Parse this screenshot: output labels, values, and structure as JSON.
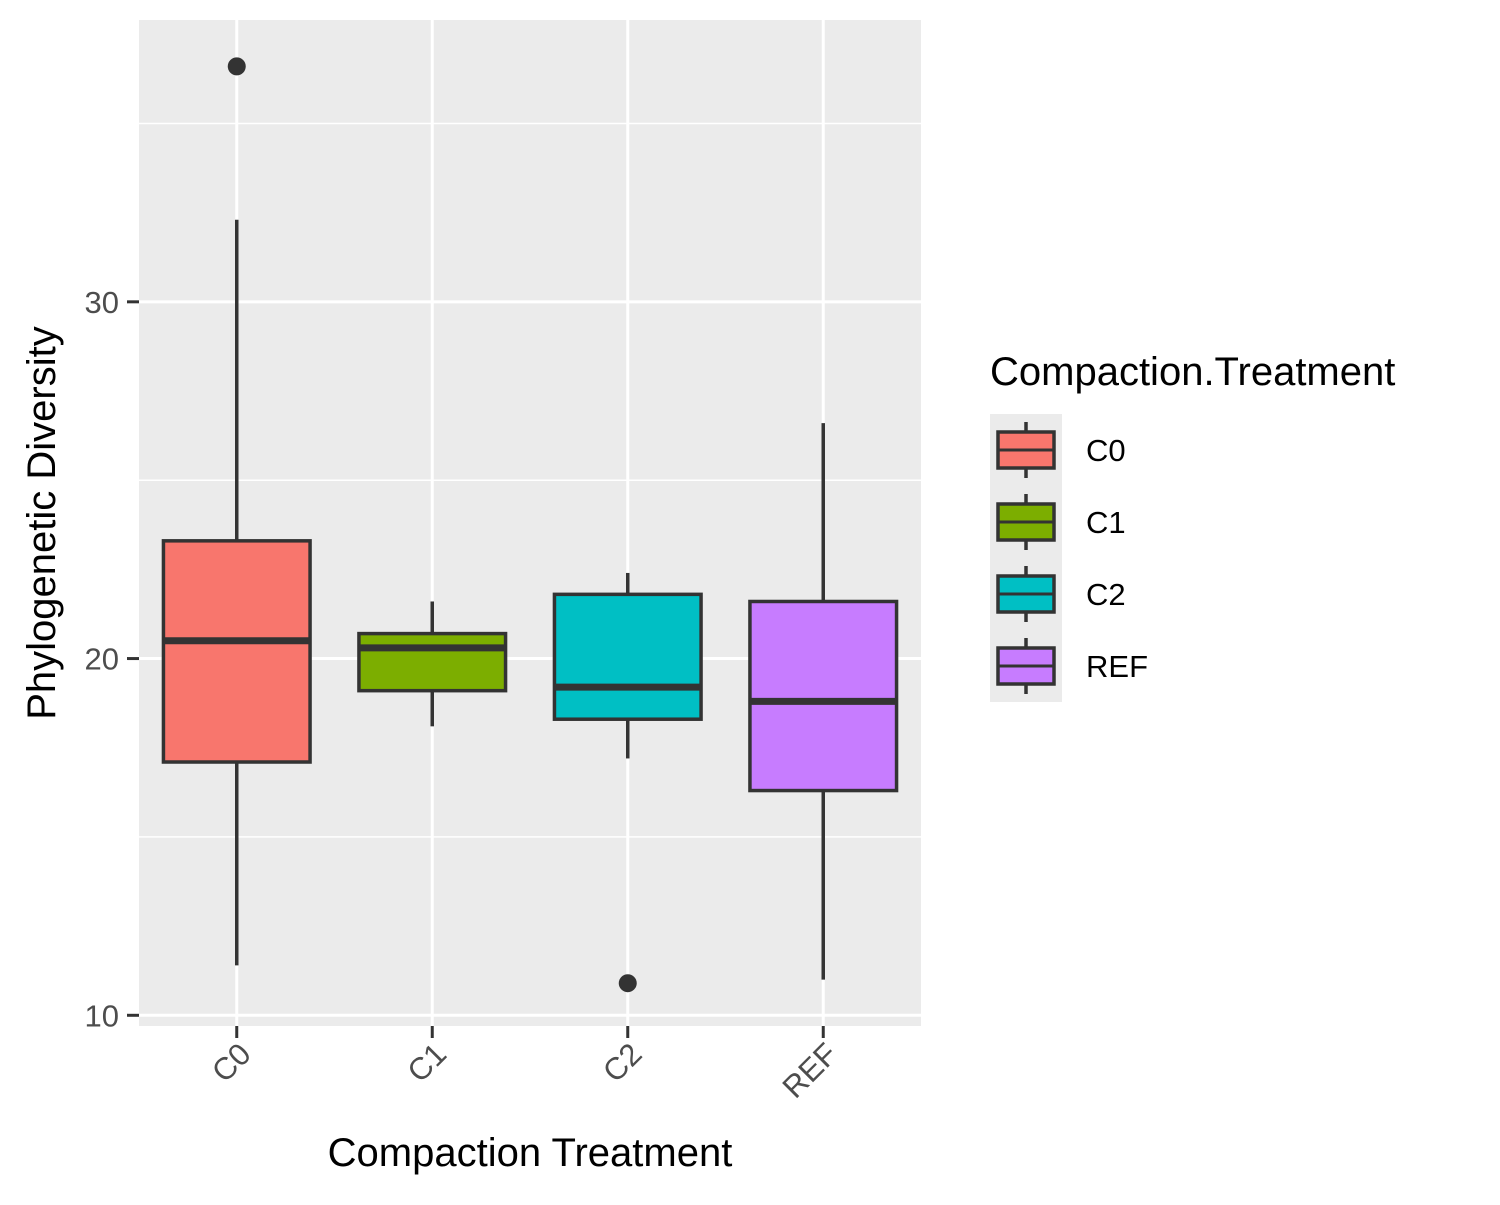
{
  "chart_data": {
    "type": "box",
    "xlabel": "Compaction Treatment",
    "ylabel": "Phylogenetic Diversity",
    "ylim": [
      9.7,
      37.9
    ],
    "yticks": [
      10,
      20,
      30
    ],
    "categories": [
      "C0",
      "C1",
      "C2",
      "REF"
    ],
    "grid": true,
    "legend": {
      "title": "Compaction.Treatment",
      "position": "right",
      "entries": [
        "C0",
        "C1",
        "C2",
        "REF"
      ]
    },
    "colors": [
      "#F8766D",
      "#7CAE00",
      "#00BFC4",
      "#C77CFF"
    ],
    "boxes": [
      {
        "category": "C0",
        "whisker_low": 11.4,
        "q1": 17.1,
        "median": 20.5,
        "q3": 23.3,
        "whisker_high": 32.3,
        "outliers": [
          36.6
        ]
      },
      {
        "category": "C1",
        "whisker_low": 18.1,
        "q1": 19.1,
        "median": 20.3,
        "q3": 20.7,
        "whisker_high": 21.6,
        "outliers": []
      },
      {
        "category": "C2",
        "whisker_low": 17.2,
        "q1": 18.3,
        "median": 19.2,
        "q3": 21.8,
        "whisker_high": 22.4,
        "outliers": [
          10.9
        ]
      },
      {
        "category": "REF",
        "whisker_low": 11.0,
        "q1": 16.3,
        "median": 18.8,
        "q3": 21.6,
        "whisker_high": 26.6,
        "outliers": []
      }
    ]
  }
}
